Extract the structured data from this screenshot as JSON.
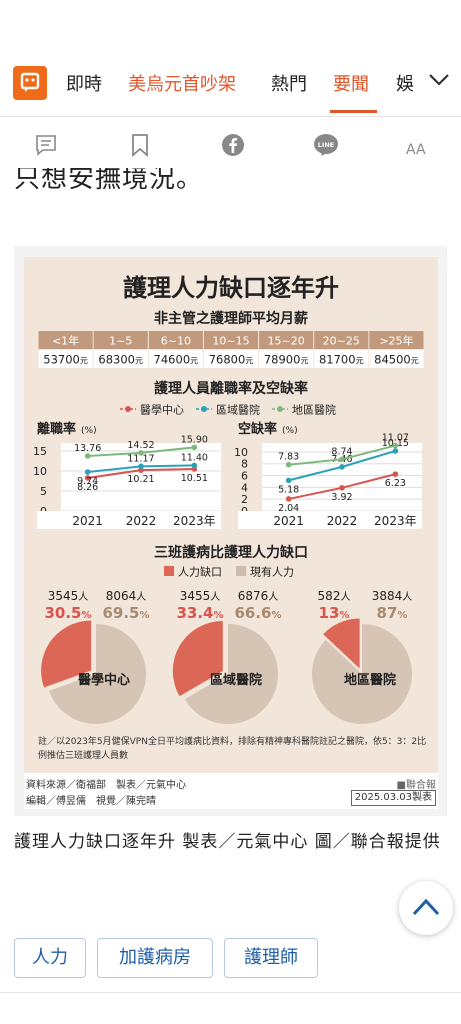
{
  "nav": {
    "tabs": [
      {
        "label": "即時"
      },
      {
        "label": "美烏元首吵架"
      },
      {
        "label": "熱門"
      },
      {
        "label": "要聞"
      },
      {
        "label": "娛"
      }
    ],
    "active_tab": "要聞",
    "accent_color": "#e2572b"
  },
  "toolbar": {
    "icons": [
      "comment-icon",
      "bookmark-icon",
      "facebook-icon",
      "line-icon",
      "font-size-icon"
    ],
    "line_label": "LINE",
    "font_label": "AA"
  },
  "article": {
    "lead_text": "只想安撫境況。",
    "caption": "護理人力缺口逐年升 製表／元氣中心 圖／聯合報提供",
    "tags": [
      "人力",
      "加護病房",
      "護理師"
    ]
  },
  "infographic": {
    "title": "護理人力缺口逐年升",
    "salary_title": "非主管之護理師平均月薪",
    "salary": {
      "years": [
        "<1年",
        "1~5",
        "6~10",
        "10~15",
        "15~20",
        "20~25",
        ">25年"
      ],
      "amounts": [
        "53700",
        "68300",
        "74600",
        "76800",
        "78900",
        "81700",
        "84500"
      ],
      "unit": "元"
    },
    "rate_title": "護理人員離職率及空缺率",
    "unit_label": "(%)",
    "legend": [
      "醫學中心",
      "區域醫院",
      "地區醫院"
    ],
    "series_colors": [
      "#d9534f",
      "#2aa3b8",
      "#7cb87a"
    ],
    "gap_title": "三班護病比護理人力缺口",
    "gap_legend": [
      "人力缺口",
      "現有人力"
    ],
    "person_unit": "人",
    "percent_unit": "%",
    "pies": [
      {
        "name": "醫學中心",
        "gap_count": "3545",
        "current_count": "8064",
        "gap_pct": "30.5",
        "current_pct": "69.5"
      },
      {
        "name": "區域醫院",
        "gap_count": "3455",
        "current_count": "6876",
        "gap_pct": "33.4",
        "current_pct": "66.6"
      },
      {
        "name": "地區醫院",
        "gap_count": "582",
        "current_count": "3884",
        "gap_pct": "13",
        "current_pct": "87"
      }
    ],
    "note": "註／以2023年5月健保VPN全日平均護病比資料，排除有精神專科醫院註記之醫院，依5：3：2比例推估三班護理人員數",
    "credits": {
      "source": "資料來源／衛福部　製表／元氣中心",
      "editor": "編輯／傅昱儒　視覺／陳完晴",
      "brand": "■聯合報",
      "date": "2025.03.03製表"
    }
  },
  "chart_data": [
    {
      "type": "line",
      "title": "離職率",
      "ylabel": "(%)",
      "categories": [
        "2021",
        "2022",
        "2023年"
      ],
      "ylim": [
        0,
        17
      ],
      "yticks": [
        "0",
        "5",
        "10",
        "15"
      ],
      "series": [
        {
          "name": "醫學中心",
          "values": [
            8.26,
            10.21,
            10.51
          ]
        },
        {
          "name": "區域醫院",
          "values": [
            9.74,
            11.17,
            11.4
          ]
        },
        {
          "name": "地區醫院",
          "values": [
            13.76,
            14.52,
            15.9
          ]
        }
      ]
    },
    {
      "type": "line",
      "title": "空缺率",
      "ylabel": "(%)",
      "categories": [
        "2021",
        "2022",
        "2023年"
      ],
      "ylim": [
        0,
        11.5
      ],
      "yticks": [
        "0",
        "2",
        "4",
        "6",
        "8",
        "10"
      ],
      "series": [
        {
          "name": "醫學中心",
          "values": [
            2.04,
            3.92,
            6.23
          ]
        },
        {
          "name": "區域醫院",
          "values": [
            5.18,
            7.46,
            10.15
          ]
        },
        {
          "name": "地區醫院",
          "values": [
            7.83,
            8.74,
            11.07
          ]
        }
      ]
    },
    {
      "type": "pie",
      "title": "三班護病比護理人力缺口",
      "categories": [
        "醫學中心",
        "區域醫院",
        "地區醫院"
      ],
      "series": [
        {
          "name": "人力缺口",
          "values": [
            30.5,
            33.4,
            13
          ]
        },
        {
          "name": "現有人力",
          "values": [
            69.5,
            66.6,
            87
          ]
        }
      ]
    }
  ]
}
